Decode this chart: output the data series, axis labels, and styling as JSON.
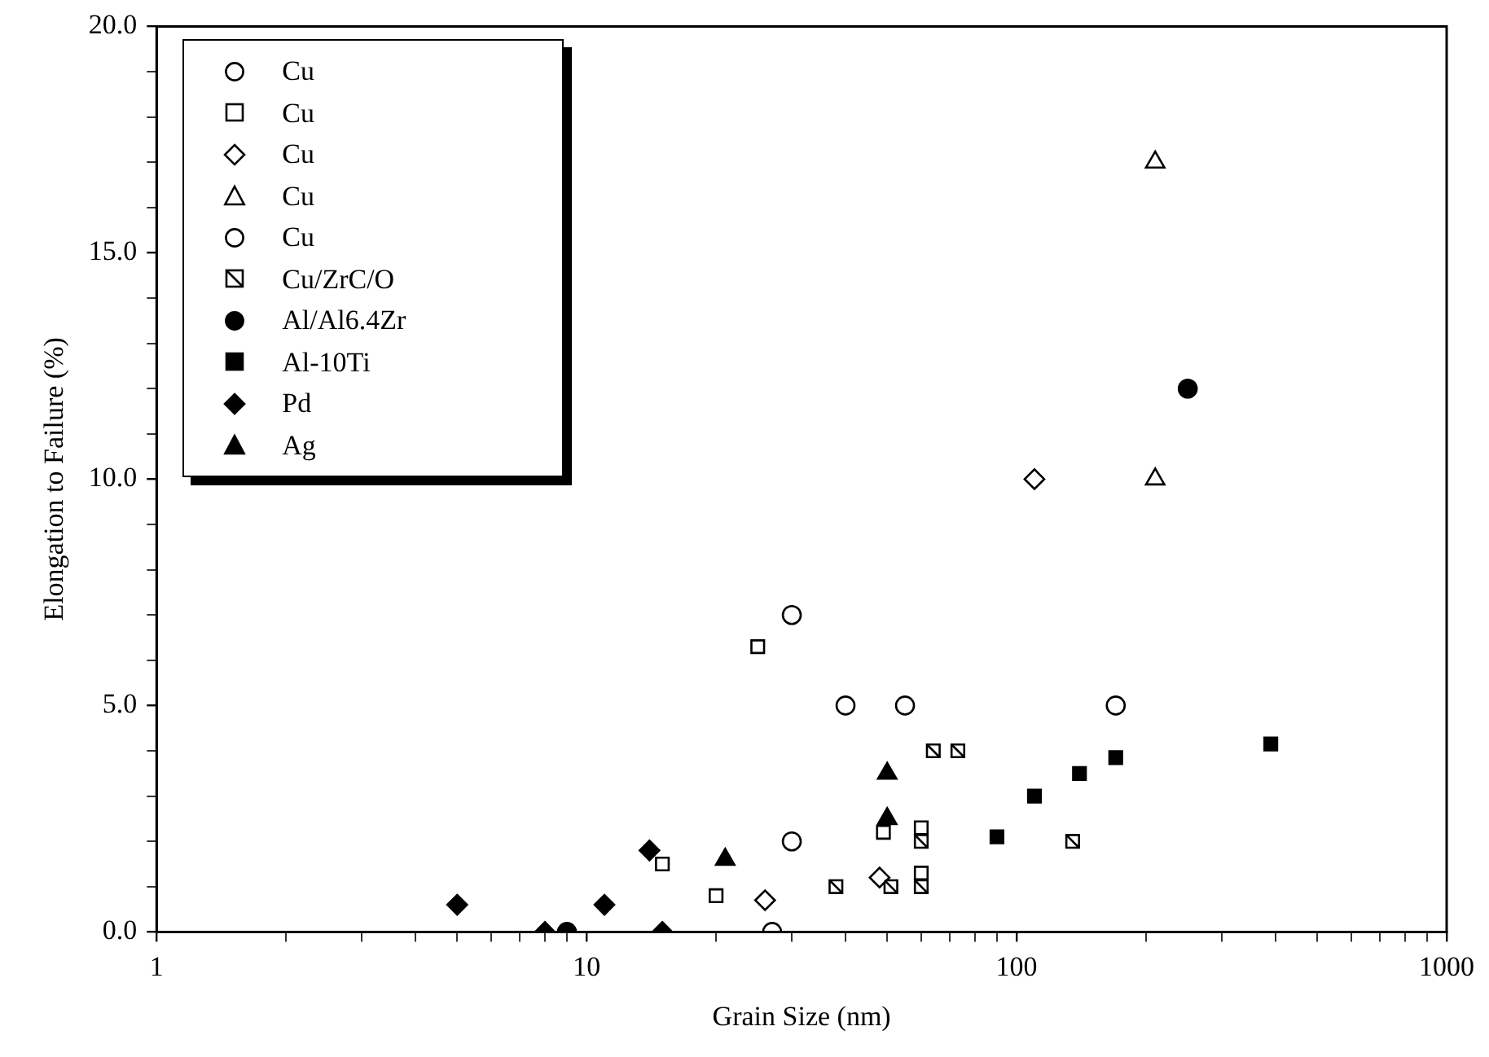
{
  "chart_data": {
    "type": "scatter",
    "xlabel": "Grain Size (nm)",
    "ylabel": "Elongation to Failure (%)",
    "log": "x",
    "xlim": [
      1,
      1000
    ],
    "xticks": [
      1,
      {
        "value": 2,
        "label": null
      },
      {
        "value": 3,
        "label": null
      },
      {
        "value": 4,
        "label": null
      },
      {
        "value": 5,
        "label": null
      },
      {
        "value": 6,
        "label": null
      },
      {
        "value": 7,
        "label": null
      },
      {
        "value": 8,
        "label": null
      },
      {
        "value": 9,
        "label": null
      },
      10,
      {
        "value": 20,
        "label": null
      },
      {
        "value": 30,
        "label": null
      },
      {
        "value": 40,
        "label": null
      },
      {
        "value": 50,
        "label": null
      },
      {
        "value": 60,
        "label": null
      },
      {
        "value": 70,
        "label": null
      },
      {
        "value": 80,
        "label": null
      },
      {
        "value": 90,
        "label": null
      },
      100,
      {
        "value": 200,
        "label": null
      },
      {
        "value": 300,
        "label": null
      },
      {
        "value": 400,
        "label": null
      },
      {
        "value": 500,
        "label": null
      },
      {
        "value": 600,
        "label": null
      },
      {
        "value": 700,
        "label": null
      },
      {
        "value": 800,
        "label": null
      },
      {
        "value": 900,
        "label": null
      },
      1000
    ],
    "ylim": [
      0,
      20
    ],
    "yticks": [
      {
        "value": 0,
        "label": "0.0"
      },
      {
        "value": 1,
        "label": null
      },
      {
        "value": 2,
        "label": null
      },
      {
        "value": 3,
        "label": null
      },
      {
        "value": 4,
        "label": null
      },
      {
        "value": 5,
        "label": "5.0"
      },
      {
        "value": 6,
        "label": null
      },
      {
        "value": 7,
        "label": null
      },
      {
        "value": 8,
        "label": null
      },
      {
        "value": 9,
        "label": null
      },
      {
        "value": 10,
        "label": "10.0"
      },
      {
        "value": 11,
        "label": null
      },
      {
        "value": 12,
        "label": null
      },
      {
        "value": 13,
        "label": null
      },
      {
        "value": 14,
        "label": null
      },
      {
        "value": 15,
        "label": "15.0"
      },
      {
        "value": 16,
        "label": null
      },
      {
        "value": 17,
        "label": null
      },
      {
        "value": 18,
        "label": null
      },
      {
        "value": 19,
        "label": null
      },
      {
        "value": 20,
        "label": "20.0"
      }
    ],
    "legend": "top left",
    "grid": false,
    "series": [
      {
        "name": "Cu",
        "color": "#000000",
        "marker": "circle-open",
        "x": [
          27,
          30,
          30
        ],
        "values": [
          0,
          2,
          7
        ]
      },
      {
        "name": "Cu",
        "color": "#000000",
        "marker": "square-open",
        "x": [
          15,
          20,
          25,
          49,
          60,
          60
        ],
        "values": [
          1.5,
          0.8,
          6.3,
          2.2,
          2.3,
          1.3
        ]
      },
      {
        "name": "Cu",
        "color": "#000000",
        "marker": "diamond-open",
        "x": [
          26,
          48,
          110
        ],
        "values": [
          0.7,
          1.2,
          10
        ]
      },
      {
        "name": "Cu",
        "color": "#000000",
        "marker": "triangle-open",
        "x": [
          210,
          210
        ],
        "values": [
          17,
          10
        ]
      },
      {
        "name": "Cu",
        "color": "#000000",
        "marker": "circle-open",
        "x": [
          40,
          55,
          170
        ],
        "values": [
          5,
          5,
          5
        ]
      },
      {
        "name": "Cu/ZrC/O",
        "color": "#000000",
        "marker": "square-cross",
        "x": [
          38,
          51,
          60,
          60,
          64,
          73,
          135
        ],
        "values": [
          1,
          1,
          1,
          2,
          4,
          4,
          2
        ]
      },
      {
        "name": "Al/Al6.4Zr",
        "color": "#000000",
        "marker": "circle",
        "x": [
          9,
          250
        ],
        "values": [
          0,
          12
        ]
      },
      {
        "name": "Al-10Ti",
        "color": "#000000",
        "marker": "square",
        "x": [
          90,
          110,
          140,
          170,
          390
        ],
        "values": [
          2.1,
          3,
          3.5,
          3.85,
          4.15
        ]
      },
      {
        "name": "Pd",
        "color": "#000000",
        "marker": "diamond",
        "x": [
          5,
          8,
          11,
          14,
          15
        ],
        "values": [
          0.6,
          0,
          0.6,
          1.8,
          0
        ]
      },
      {
        "name": "Ag",
        "color": "#000000",
        "marker": "triangle",
        "x": [
          21,
          50,
          50
        ],
        "values": [
          1.6,
          2.5,
          3.5
        ]
      }
    ]
  }
}
